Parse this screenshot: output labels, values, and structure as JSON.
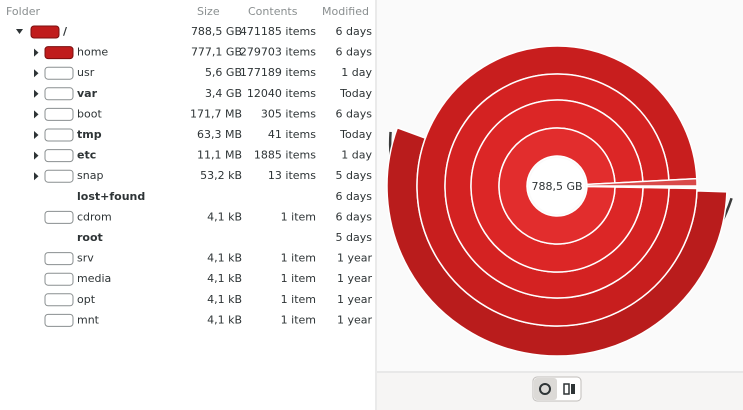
{
  "header": {
    "folder": "Folder",
    "size": "Size",
    "contents": "Contents",
    "modified": "Modified"
  },
  "rows": [
    {
      "name": "/",
      "size": "788,5 GB",
      "contents": "471185 items",
      "modified": "6 days"
    },
    {
      "name": "home",
      "size": "777,1 GB",
      "contents": "279703 items",
      "modified": "6 days"
    },
    {
      "name": "usr",
      "size": "5,6 GB",
      "contents": "177189 items",
      "modified": "1 day"
    },
    {
      "name": "var",
      "size": "3,4 GB",
      "contents": "12040 items",
      "modified": "Today"
    },
    {
      "name": "boot",
      "size": "171,7 MB",
      "contents": "305 items",
      "modified": "6 days"
    },
    {
      "name": "tmp",
      "size": "63,3 MB",
      "contents": "41 items",
      "modified": "Today"
    },
    {
      "name": "etc",
      "size": "11,1 MB",
      "contents": "1885 items",
      "modified": "1 day"
    },
    {
      "name": "snap",
      "size": "53,2 kB",
      "contents": "13 items",
      "modified": "5 days"
    },
    {
      "name": "lost+found",
      "modified": "6 days"
    },
    {
      "name": "cdrom",
      "size": "4,1 kB",
      "contents": "1 item",
      "modified": "6 days"
    },
    {
      "name": "root",
      "modified": "5 days"
    },
    {
      "name": "srv",
      "size": "4,1 kB",
      "contents": "1 item",
      "modified": "1 year"
    },
    {
      "name": "media",
      "size": "4,1 kB",
      "contents": "1 item",
      "modified": "1 year"
    },
    {
      "name": "opt",
      "size": "4,1 kB",
      "contents": "1 item",
      "modified": "1 year"
    },
    {
      "name": "mnt",
      "size": "4,1 kB",
      "contents": "1 item",
      "modified": "1 year"
    }
  ],
  "chart": {
    "center_label": "788,5 GB"
  }
}
